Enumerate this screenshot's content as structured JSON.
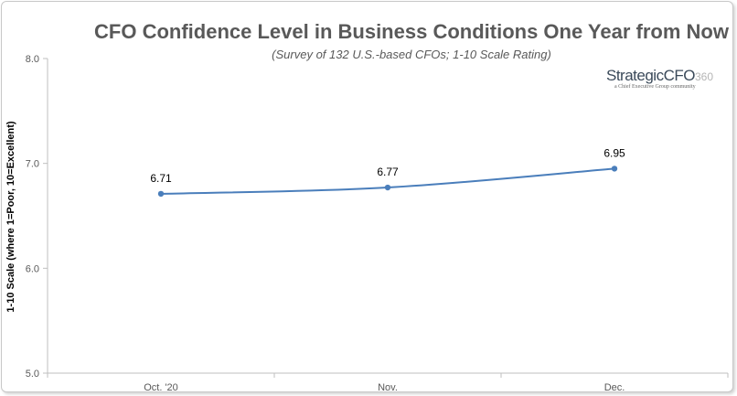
{
  "chart_data": {
    "type": "line",
    "title": "CFO Confidence Level in Business Conditions One Year from Now",
    "subtitle": "(Survey of 132 U.S.-based CFOs; 1-10 Scale Rating)",
    "ylabel": "1-10 Scale (where 1=Poor, 10=Excellent)",
    "xlabel": "",
    "categories": [
      "Oct. '20",
      "Nov.",
      "Dec."
    ],
    "values": [
      6.71,
      6.77,
      6.95
    ],
    "data_labels": [
      "6.71",
      "6.77",
      "6.95"
    ],
    "y_ticks": [
      "5.0",
      "6.0",
      "7.0",
      "8.0"
    ],
    "ylim": [
      5.0,
      8.0
    ],
    "grid": false,
    "legend": "none",
    "line_color": "#4a7ebb"
  },
  "logo": {
    "main": "StrategicCFO",
    "suffix": "360",
    "tagline": "a Chief Executive Group community"
  }
}
